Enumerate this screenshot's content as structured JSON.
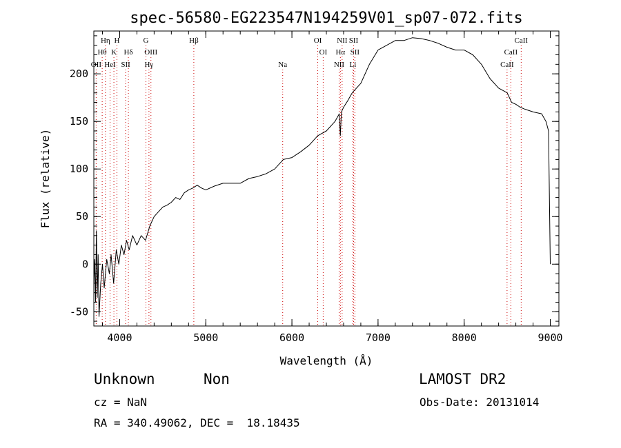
{
  "chart_data": {
    "type": "line",
    "title": "spec-56580-EG223547N194259V01_sp07-072.fits",
    "xlabel": "Wavelength (Å)",
    "ylabel": "Flux (relative)",
    "xlim": [
      3700,
      9100
    ],
    "ylim": [
      -65,
      245
    ],
    "xticks": [
      4000,
      5000,
      6000,
      7000,
      8000,
      9000
    ],
    "yticks": [
      -50,
      0,
      50,
      100,
      150,
      200
    ],
    "grid": false,
    "line_color": "#000000",
    "marker_color": "#cc0000",
    "series": [
      {
        "x": [
          3700,
          3710,
          3720,
          3730,
          3740,
          3750,
          3760,
          3780,
          3800,
          3820,
          3850,
          3880,
          3900,
          3930,
          3960,
          3990,
          4020,
          4050,
          4080,
          4110,
          4150,
          4200,
          4250,
          4300,
          4350,
          4400,
          4450,
          4500,
          4550,
          4600,
          4650,
          4700,
          4750,
          4800,
          4850,
          4900,
          4950,
          5000,
          5100,
          5200,
          5300,
          5400,
          5500,
          5600,
          5700,
          5800,
          5900,
          6000,
          6100,
          6200,
          6300,
          6400,
          6500,
          6550,
          6562,
          6575,
          6600,
          6650,
          6700,
          6800,
          6900,
          7000,
          7100,
          7200,
          7300,
          7400,
          7500,
          7600,
          7700,
          7800,
          7900,
          8000,
          8100,
          8200,
          8300,
          8400,
          8500,
          8550,
          8600,
          8650,
          8700,
          8800,
          8900,
          8950,
          8980,
          9000
        ],
        "y": [
          -20,
          5,
          -40,
          35,
          -35,
          10,
          -55,
          -20,
          0,
          -25,
          5,
          -10,
          10,
          -20,
          15,
          0,
          20,
          10,
          25,
          15,
          30,
          20,
          30,
          25,
          40,
          50,
          55,
          60,
          62,
          65,
          70,
          68,
          75,
          78,
          80,
          83,
          80,
          78,
          82,
          85,
          85,
          85,
          90,
          92,
          95,
          100,
          110,
          112,
          118,
          125,
          135,
          140,
          150,
          158,
          135,
          160,
          165,
          172,
          180,
          190,
          210,
          225,
          230,
          235,
          235,
          238,
          237,
          235,
          232,
          228,
          225,
          225,
          220,
          210,
          195,
          185,
          180,
          170,
          168,
          165,
          163,
          160,
          158,
          150,
          140,
          0
        ]
      }
    ],
    "lines_top": [
      {
        "label": "Hη",
        "x": 3835
      },
      {
        "label": "H",
        "x": 3968
      },
      {
        "label": "G",
        "x": 4305
      },
      {
        "label": "Hβ",
        "x": 4861
      },
      {
        "label": "OI",
        "x": 6300
      },
      {
        "label": "NII",
        "x": 6583
      },
      {
        "label": "SII",
        "x": 6716
      },
      {
        "label": "CaII",
        "x": 8662
      }
    ],
    "lines_mid": [
      {
        "label": "Hθ",
        "x": 3797
      },
      {
        "label": "K",
        "x": 3933
      },
      {
        "label": "Hδ",
        "x": 4101
      },
      {
        "label": "OIII",
        "x": 4363
      },
      {
        "label": "OI",
        "x": 6363
      },
      {
        "label": "Hα",
        "x": 6563
      },
      {
        "label": "SII",
        "x": 6731
      },
      {
        "label": "CaII",
        "x": 8542
      }
    ],
    "lines_low": [
      {
        "label": "OII",
        "x": 3727
      },
      {
        "label": "HeI",
        "x": 3888
      },
      {
        "label": "SII",
        "x": 4069
      },
      {
        "label": "Hγ",
        "x": 4340
      },
      {
        "label": "Na",
        "x": 5893
      },
      {
        "label": "NII",
        "x": 6548
      },
      {
        "label": "Li",
        "x": 6708
      },
      {
        "label": "CaII",
        "x": 8498
      }
    ]
  },
  "info": {
    "class": "Unknown",
    "subclass": "Non",
    "survey": "LAMOST DR2",
    "cz": "cz = NaN",
    "obs_date": "Obs-Date: 20131014",
    "radec": "RA = 340.49062, DEC =  18.18435"
  }
}
